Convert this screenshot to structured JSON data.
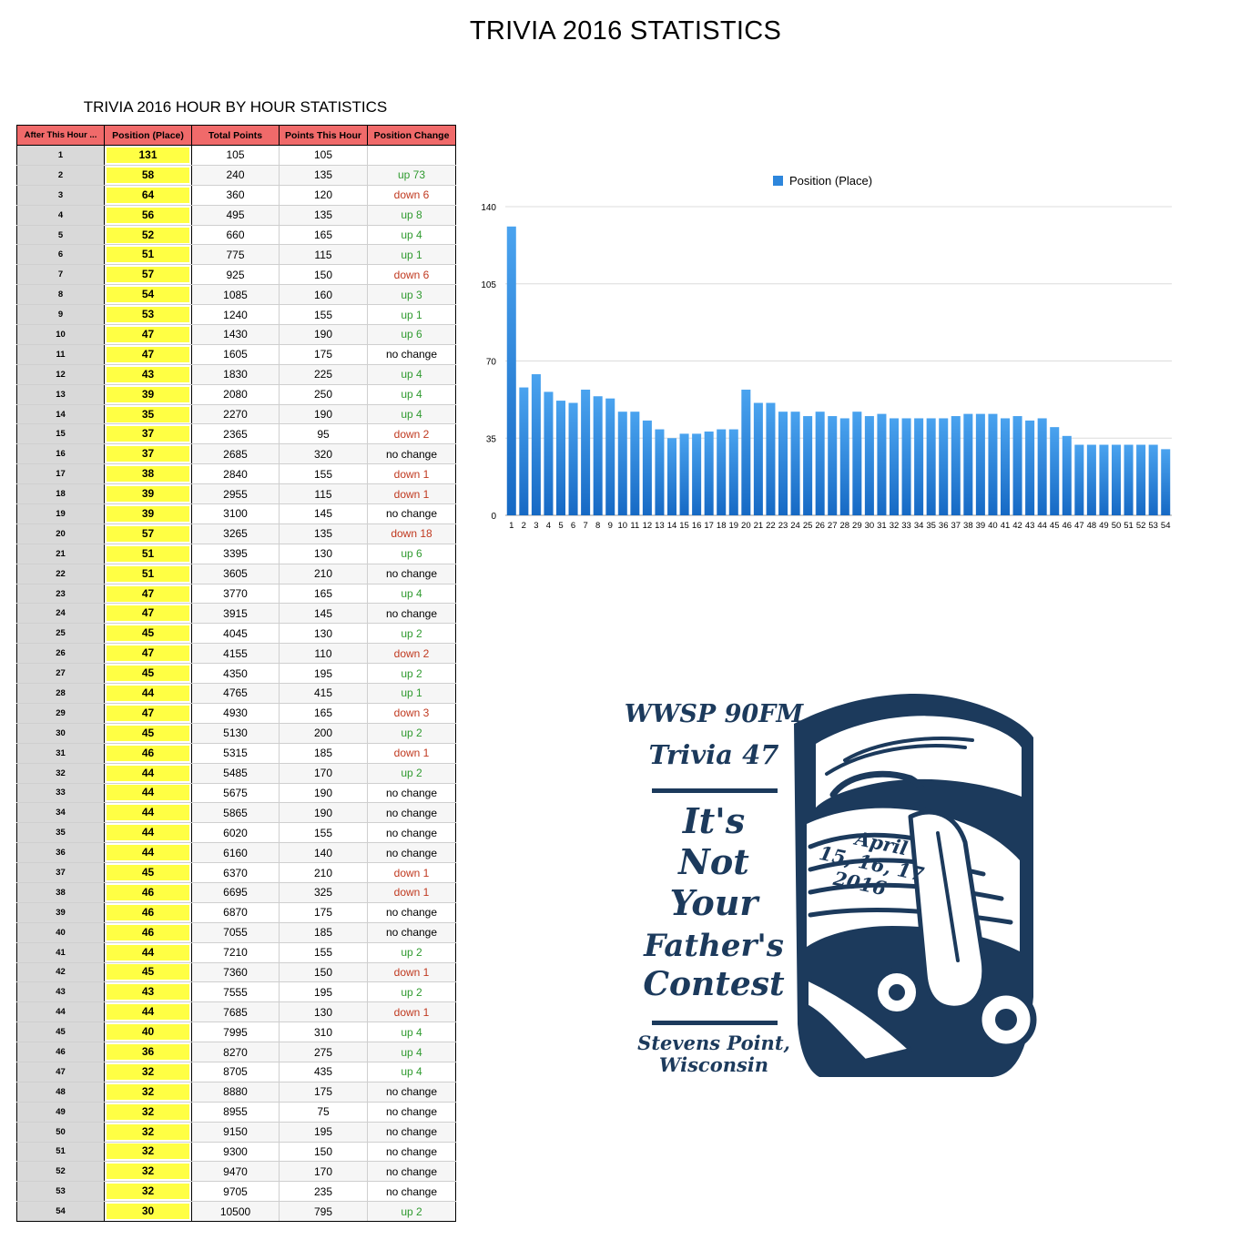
{
  "page_title": "TRIVIA 2016 STATISTICS",
  "table": {
    "title": "TRIVIA 2016 HOUR BY HOUR STATISTICS",
    "headers": [
      "After This Hour ...",
      "Position (Place)",
      "Total Points",
      "Points This Hour",
      "Position Change"
    ],
    "rows": [
      [
        "1",
        "131",
        "105",
        "105",
        ""
      ],
      [
        "2",
        "58",
        "240",
        "135",
        "up 73"
      ],
      [
        "3",
        "64",
        "360",
        "120",
        "down 6"
      ],
      [
        "4",
        "56",
        "495",
        "135",
        "up 8"
      ],
      [
        "5",
        "52",
        "660",
        "165",
        "up 4"
      ],
      [
        "6",
        "51",
        "775",
        "115",
        "up 1"
      ],
      [
        "7",
        "57",
        "925",
        "150",
        "down 6"
      ],
      [
        "8",
        "54",
        "1085",
        "160",
        "up 3"
      ],
      [
        "9",
        "53",
        "1240",
        "155",
        "up 1"
      ],
      [
        "10",
        "47",
        "1430",
        "190",
        "up 6"
      ],
      [
        "11",
        "47",
        "1605",
        "175",
        "no change"
      ],
      [
        "12",
        "43",
        "1830",
        "225",
        "up 4"
      ],
      [
        "13",
        "39",
        "2080",
        "250",
        "up 4"
      ],
      [
        "14",
        "35",
        "2270",
        "190",
        "up 4"
      ],
      [
        "15",
        "37",
        "2365",
        "95",
        "down 2"
      ],
      [
        "16",
        "37",
        "2685",
        "320",
        "no change"
      ],
      [
        "17",
        "38",
        "2840",
        "155",
        "down 1"
      ],
      [
        "18",
        "39",
        "2955",
        "115",
        "down 1"
      ],
      [
        "19",
        "39",
        "3100",
        "145",
        "no change"
      ],
      [
        "20",
        "57",
        "3265",
        "135",
        "down 18"
      ],
      [
        "21",
        "51",
        "3395",
        "130",
        "up 6"
      ],
      [
        "22",
        "51",
        "3605",
        "210",
        "no change"
      ],
      [
        "23",
        "47",
        "3770",
        "165",
        "up 4"
      ],
      [
        "24",
        "47",
        "3915",
        "145",
        "no change"
      ],
      [
        "25",
        "45",
        "4045",
        "130",
        "up 2"
      ],
      [
        "26",
        "47",
        "4155",
        "110",
        "down 2"
      ],
      [
        "27",
        "45",
        "4350",
        "195",
        "up 2"
      ],
      [
        "28",
        "44",
        "4765",
        "415",
        "up 1"
      ],
      [
        "29",
        "47",
        "4930",
        "165",
        "down 3"
      ],
      [
        "30",
        "45",
        "5130",
        "200",
        "up 2"
      ],
      [
        "31",
        "46",
        "5315",
        "185",
        "down 1"
      ],
      [
        "32",
        "44",
        "5485",
        "170",
        "up 2"
      ],
      [
        "33",
        "44",
        "5675",
        "190",
        "no change"
      ],
      [
        "34",
        "44",
        "5865",
        "190",
        "no change"
      ],
      [
        "35",
        "44",
        "6020",
        "155",
        "no change"
      ],
      [
        "36",
        "44",
        "6160",
        "140",
        "no change"
      ],
      [
        "37",
        "45",
        "6370",
        "210",
        "down 1"
      ],
      [
        "38",
        "46",
        "6695",
        "325",
        "down 1"
      ],
      [
        "39",
        "46",
        "6870",
        "175",
        "no change"
      ],
      [
        "40",
        "46",
        "7055",
        "185",
        "no change"
      ],
      [
        "41",
        "44",
        "7210",
        "155",
        "up 2"
      ],
      [
        "42",
        "45",
        "7360",
        "150",
        "down 1"
      ],
      [
        "43",
        "43",
        "7555",
        "195",
        "up 2"
      ],
      [
        "44",
        "44",
        "7685",
        "130",
        "down 1"
      ],
      [
        "45",
        "40",
        "7995",
        "310",
        "up 4"
      ],
      [
        "46",
        "36",
        "8270",
        "275",
        "up 4"
      ],
      [
        "47",
        "32",
        "8705",
        "435",
        "up 4"
      ],
      [
        "48",
        "32",
        "8880",
        "175",
        "no change"
      ],
      [
        "49",
        "32",
        "8955",
        "75",
        "no change"
      ],
      [
        "50",
        "32",
        "9150",
        "195",
        "no change"
      ],
      [
        "51",
        "32",
        "9300",
        "150",
        "no change"
      ],
      [
        "52",
        "32",
        "9470",
        "170",
        "no change"
      ],
      [
        "53",
        "32",
        "9705",
        "235",
        "no change"
      ],
      [
        "54",
        "30",
        "10500",
        "795",
        "up 2"
      ]
    ]
  },
  "colors": {
    "header_red": "#f06a6a",
    "position_yellow": "#ffff44",
    "up_green": "#2f9a2f",
    "down_red": "#c0391f",
    "bar_blue": "#2d86dc",
    "poster_navy": "#1c3a5c"
  },
  "chart_data": {
    "type": "bar",
    "legend_position": "top",
    "grid": true,
    "categories": [
      "1",
      "2",
      "3",
      "4",
      "5",
      "6",
      "7",
      "8",
      "9",
      "10",
      "11",
      "12",
      "13",
      "14",
      "15",
      "16",
      "17",
      "18",
      "19",
      "20",
      "21",
      "22",
      "23",
      "24",
      "25",
      "26",
      "27",
      "28",
      "29",
      "30",
      "31",
      "32",
      "33",
      "34",
      "35",
      "36",
      "37",
      "38",
      "39",
      "40",
      "41",
      "42",
      "43",
      "44",
      "45",
      "46",
      "47",
      "48",
      "49",
      "50",
      "51",
      "52",
      "53",
      "54"
    ],
    "series": [
      {
        "name": "Position (Place)",
        "values": [
          131,
          58,
          64,
          56,
          52,
          51,
          57,
          54,
          53,
          47,
          47,
          43,
          39,
          35,
          37,
          37,
          38,
          39,
          39,
          57,
          51,
          51,
          47,
          47,
          45,
          47,
          45,
          44,
          47,
          45,
          46,
          44,
          44,
          44,
          44,
          44,
          45,
          46,
          46,
          46,
          44,
          45,
          43,
          44,
          40,
          36,
          32,
          32,
          32,
          32,
          32,
          32,
          32,
          30
        ]
      }
    ],
    "yticks": [
      "0",
      "35",
      "70",
      "105",
      "140"
    ],
    "ylim": [
      0,
      140
    ]
  },
  "poster": {
    "line1": "WWSP 90FM",
    "line2": "Trivia 47",
    "slogan": [
      "It's",
      "Not",
      "Your",
      "Father's",
      "Contest"
    ],
    "dates": [
      "April",
      "15, 16, 17",
      "2016"
    ],
    "location": [
      "Stevens Point,",
      "Wisconsin"
    ]
  }
}
